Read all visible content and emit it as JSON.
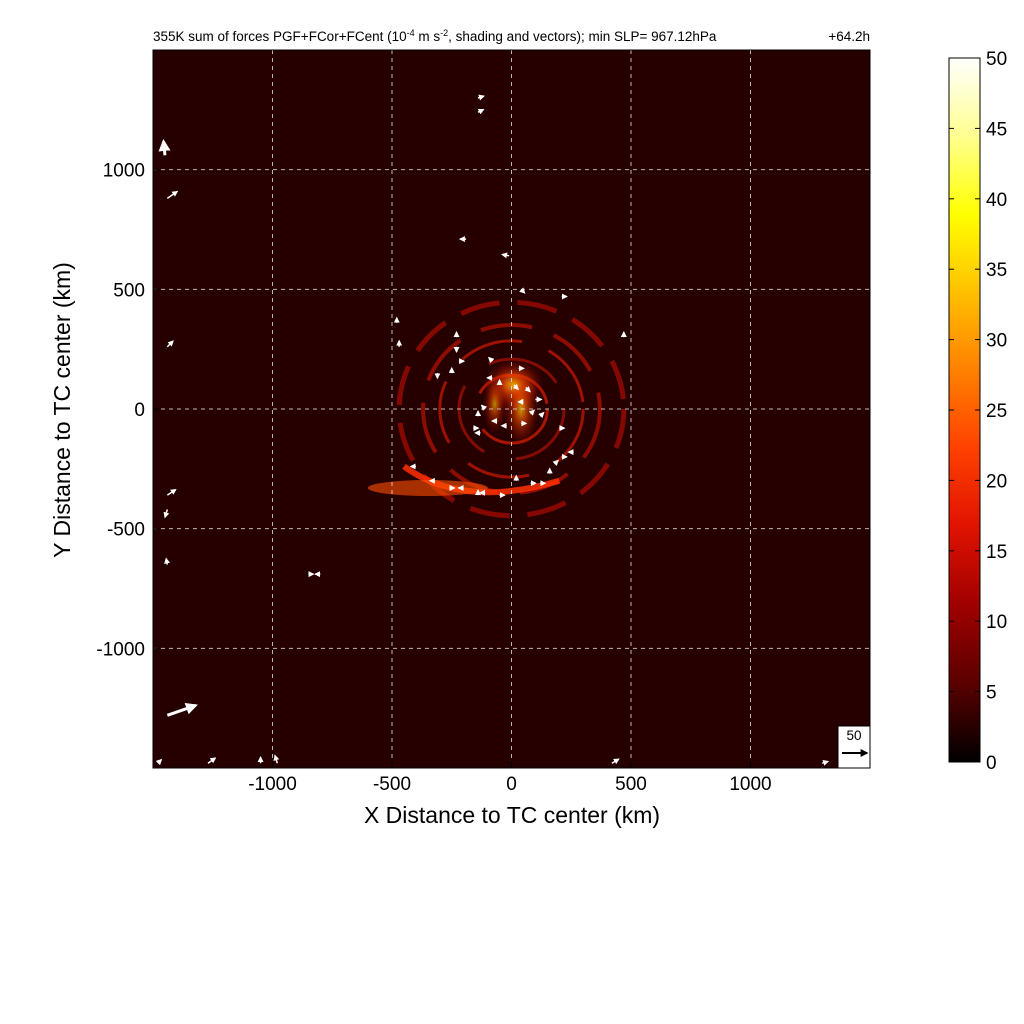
{
  "chart_data": {
    "type": "heatmap",
    "title_main": "355K sum of forces PGF+FCor+FCent (10",
    "title_exp1": "-4",
    "title_mid": " m s",
    "title_exp2": "-2",
    "title_end": ", shading and vectors); min SLP= 967.12hPa",
    "time_label": "+64.2h",
    "xlabel": "X Distance to TC center (km)",
    "ylabel": "Y Distance to TC center (km)",
    "xlim": [
      -1500,
      1500
    ],
    "ylim": [
      -1500,
      1500
    ],
    "xticks": [
      -1000,
      -500,
      0,
      500,
      1000
    ],
    "xtick_labels": [
      "-1000",
      "-500",
      "0",
      "500",
      "1000"
    ],
    "yticks": [
      -1000,
      -500,
      0,
      500,
      1000
    ],
    "ytick_labels": [
      "-1000",
      "-500",
      "0",
      "500",
      "1000"
    ],
    "grid": true,
    "grid_km": [
      -1000,
      -500,
      0,
      500,
      1000
    ],
    "colorbar": {
      "min": 0,
      "max": 50,
      "ticks": [
        0,
        5,
        10,
        15,
        20,
        25,
        30,
        35,
        40,
        45,
        50
      ],
      "tick_labels": [
        "0",
        "5",
        "10",
        "15",
        "20",
        "25",
        "30",
        "35",
        "40",
        "45",
        "50"
      ],
      "colors": [
        "#000000",
        "#5a0000",
        "#a00000",
        "#e01200",
        "#ff4000",
        "#ff8000",
        "#ffc000",
        "#ffff00",
        "#ffff90",
        "#ffffff"
      ]
    },
    "reference_vector": {
      "label": "50",
      "value": 50
    },
    "features": {
      "center_max_value": 30,
      "center_max_km": [
        10,
        100
      ],
      "rainband_arc_value": 20,
      "rainband_arc_km": [
        -350,
        -330
      ],
      "background_value": 5
    },
    "vectors": [
      [
        -140,
        1300,
        1,
        0.3,
        6
      ],
      [
        -140,
        1240,
        0.8,
        0.4,
        6
      ],
      [
        -1450,
        1060,
        -0.1,
        1,
        14
      ],
      [
        -1440,
        880,
        1,
        0.7,
        12
      ],
      [
        -1440,
        260,
        0.8,
        0.8,
        8
      ],
      [
        -1440,
        -360,
        0.6,
        0.4,
        10
      ],
      [
        -1440,
        -420,
        -0.3,
        -1,
        8
      ],
      [
        -1440,
        -650,
        -0.2,
        1,
        6
      ],
      [
        -1440,
        -1280,
        1,
        0.35,
        30
      ],
      [
        -1270,
        -1480,
        1,
        0.7,
        9
      ],
      [
        -980,
        -1480,
        -0.3,
        1,
        8
      ],
      [
        -1050,
        -1480,
        0,
        1,
        6
      ],
      [
        420,
        -1480,
        1,
        0.6,
        8
      ],
      [
        1300,
        -1480,
        1,
        0.3,
        6
      ],
      [
        -190,
        710,
        -1,
        0,
        6
      ],
      [
        -10,
        640,
        -1,
        0.2,
        7
      ],
      [
        40,
        500,
        0.5,
        -0.5,
        5
      ],
      [
        210,
        470,
        1,
        0,
        5
      ],
      [
        -470,
        260,
        0,
        1,
        6
      ],
      [
        -230,
        300,
        0,
        1,
        5
      ],
      [
        -230,
        260,
        0,
        -1,
        5
      ],
      [
        -220,
        200,
        1,
        0,
        5
      ],
      [
        -310,
        150,
        0,
        -1,
        5
      ],
      [
        -250,
        150,
        0,
        1,
        5
      ],
      [
        -80,
        200,
        -1,
        1,
        5
      ],
      [
        30,
        170,
        1,
        0,
        5
      ],
      [
        -80,
        130,
        -1,
        0,
        5
      ],
      [
        -50,
        100,
        0,
        1,
        5
      ],
      [
        10,
        100,
        1,
        -1,
        6
      ],
      [
        60,
        90,
        1,
        -1,
        6
      ],
      [
        100,
        40,
        1,
        0,
        6
      ],
      [
        50,
        30,
        -1,
        0,
        5
      ],
      [
        80,
        -20,
        1,
        1,
        5
      ],
      [
        40,
        -60,
        1,
        0,
        5
      ],
      [
        -20,
        -70,
        -1,
        0,
        5
      ],
      [
        -60,
        -50,
        -1,
        0,
        5
      ],
      [
        -110,
        0,
        -1,
        1,
        5
      ],
      [
        -140,
        -30,
        0,
        1,
        5
      ],
      [
        -160,
        -80,
        1,
        0,
        5
      ],
      [
        -130,
        -100,
        -1,
        0,
        5
      ],
      [
        120,
        -30,
        1,
        1,
        5
      ],
      [
        200,
        -80,
        1,
        0,
        5
      ],
      [
        -400,
        -240,
        -1,
        0,
        5
      ],
      [
        -320,
        -300,
        -1,
        0,
        5
      ],
      [
        -200,
        -330,
        -1,
        0,
        5
      ],
      [
        -110,
        -350,
        -1,
        0,
        5
      ],
      [
        -50,
        -360,
        1,
        0,
        5
      ],
      [
        20,
        -300,
        0,
        1,
        5
      ],
      [
        80,
        -310,
        1,
        0,
        5
      ],
      [
        120,
        -310,
        1,
        0,
        5
      ],
      [
        160,
        -270,
        0,
        1,
        5
      ],
      [
        180,
        -230,
        1,
        1,
        5
      ],
      [
        210,
        -200,
        1,
        0,
        5
      ],
      [
        260,
        -180,
        -1,
        0,
        5
      ],
      [
        -140,
        -360,
        0,
        1,
        5
      ],
      [
        -260,
        -330,
        1,
        0,
        5
      ],
      [
        -1480,
        -1480,
        1,
        1,
        5
      ],
      [
        -800,
        -690,
        -1,
        0,
        5
      ],
      [
        -850,
        -690,
        1,
        0,
        5
      ],
      [
        470,
        300,
        0,
        1,
        5
      ],
      [
        -480,
        360,
        0,
        1,
        5
      ]
    ]
  }
}
